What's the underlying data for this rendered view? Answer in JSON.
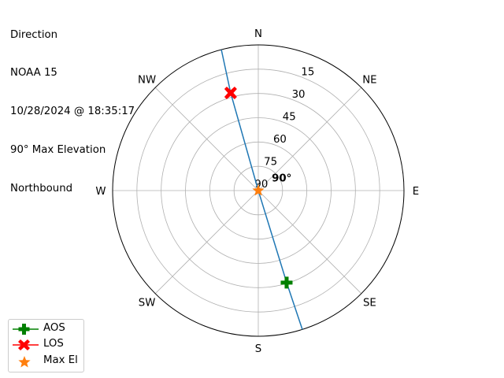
{
  "title_lines": [
    "Direction",
    "NOAA 15",
    "10/28/2024 @ 18:35:17",
    "90° Max Elevation",
    "Northbound"
  ],
  "chart_data": {
    "type": "polar",
    "theta_direction": "clockwise",
    "theta_zero": "N",
    "compass_labels": [
      {
        "az": 0,
        "label": "N"
      },
      {
        "az": 45,
        "label": "NE"
      },
      {
        "az": 90,
        "label": "E"
      },
      {
        "az": 135,
        "label": "SE"
      },
      {
        "az": 180,
        "label": "S"
      },
      {
        "az": 225,
        "label": "SW"
      },
      {
        "az": 270,
        "label": "W"
      },
      {
        "az": 315,
        "label": "NW"
      }
    ],
    "radial_ticks": [
      "15",
      "30",
      "45",
      "60",
      "75",
      "90"
    ],
    "radial_range": [
      0,
      90
    ],
    "radial_axis": "elevation (90 at center)",
    "grid": true,
    "track": {
      "color": "#1f77b4",
      "points": [
        [
          162.4,
          0
        ],
        [
          162.9,
          30.5
        ],
        [
          0,
          90
        ],
        [
          344.2,
          27.3
        ],
        [
          345.3,
          0
        ]
      ]
    },
    "markers": [
      {
        "name": "AOS",
        "az": 162.9,
        "el": 30.5,
        "color": "#008000",
        "shape": "plus"
      },
      {
        "name": "LOS",
        "az": 344.2,
        "el": 27.3,
        "color": "#ff0000",
        "shape": "x"
      },
      {
        "name": "Max El",
        "az": 0,
        "el": 90,
        "color": "#ff7f0e",
        "shape": "star"
      }
    ],
    "annotation": {
      "text": "90°",
      "az": 30,
      "el": 84
    },
    "legend_position": "lower-left"
  }
}
